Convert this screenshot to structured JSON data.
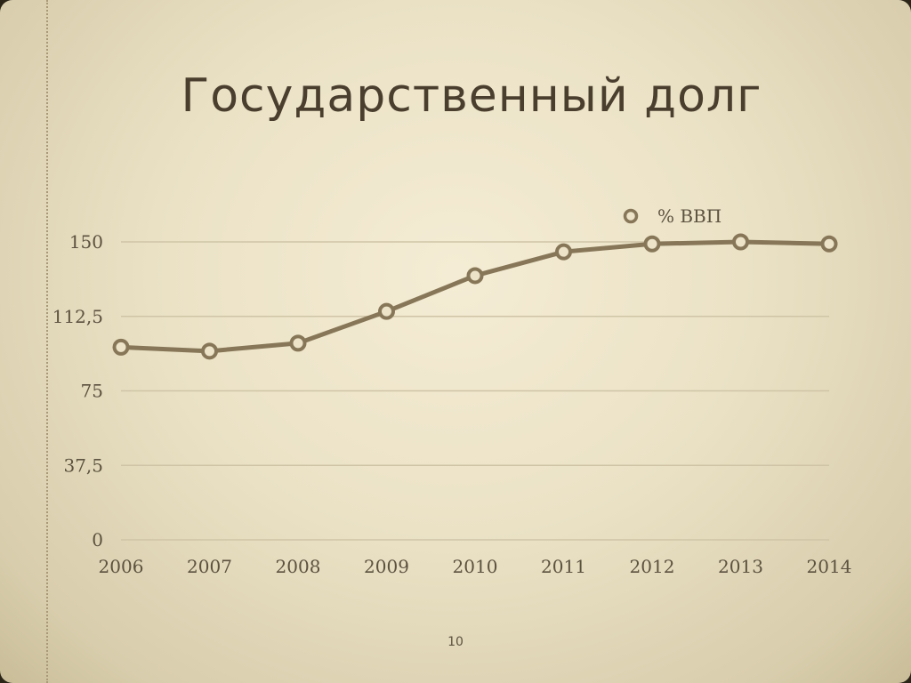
{
  "slide": {
    "title": "Государственный долг",
    "page_number": "10"
  },
  "colors": {
    "line": "#877758",
    "marker_fill": "#ece3c8",
    "grid": "#cfc4a6",
    "text": "#5c5240"
  },
  "chart_data": {
    "type": "line",
    "title": "",
    "xlabel": "",
    "ylabel": "",
    "categories": [
      "2006",
      "2007",
      "2008",
      "2009",
      "2010",
      "2011",
      "2012",
      "2013",
      "2014"
    ],
    "series": [
      {
        "name": "% ВВП",
        "values": [
          97,
          95,
          99,
          115,
          133,
          145,
          149,
          150,
          149
        ]
      }
    ],
    "y_ticks": [
      0,
      37.5,
      75,
      112.5,
      150
    ],
    "y_tick_labels": [
      "0",
      "37,5",
      "75",
      "112,5",
      "150"
    ],
    "ylim": [
      0,
      150
    ],
    "grid": true,
    "legend_position": "top-right",
    "marker": "circle"
  }
}
